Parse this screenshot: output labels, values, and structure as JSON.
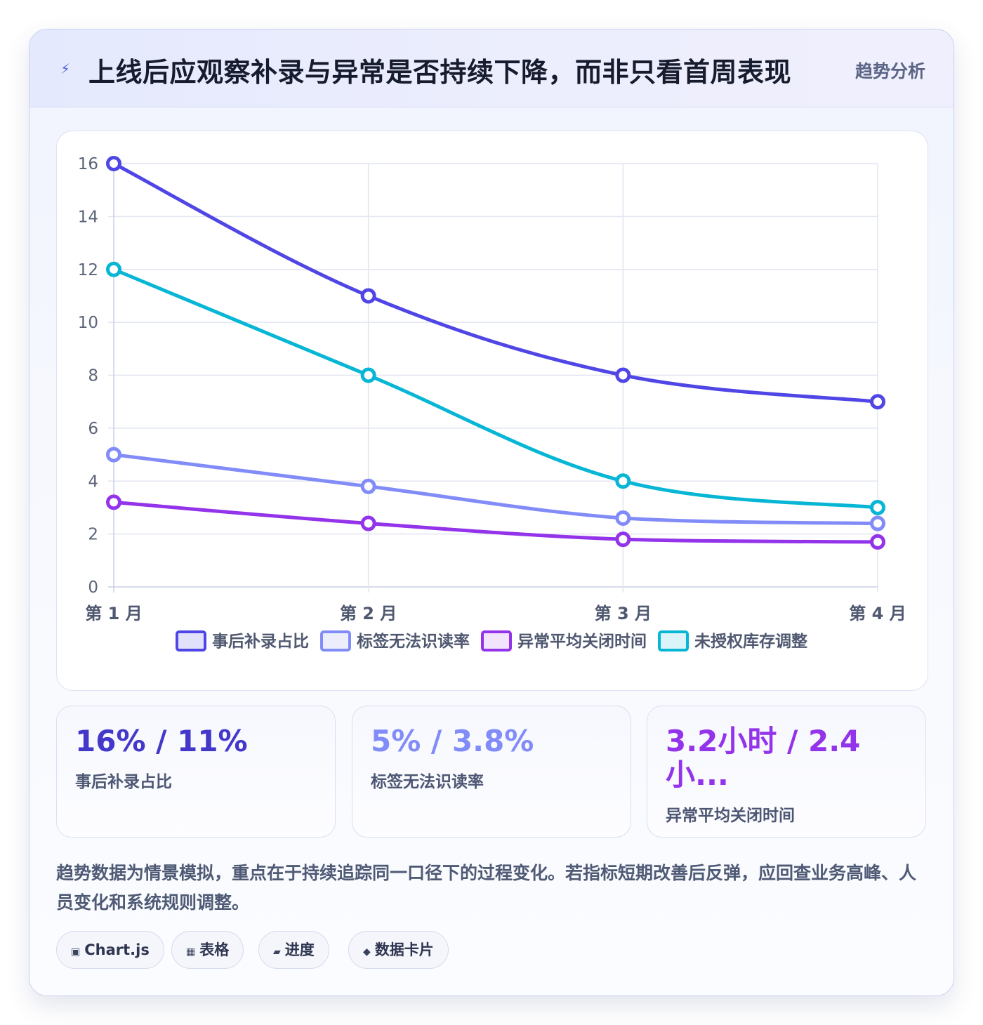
{
  "header": {
    "icon": "lightning-bolt-icon",
    "title": "上线后应观察补录与异常是否持续下降，而非只看首周表现",
    "tag": "趋势分析"
  },
  "chart_data": {
    "type": "line",
    "categories": [
      "第 1 月",
      "第 2 月",
      "第 3 月",
      "第 4 月"
    ],
    "ylim": [
      0,
      16
    ],
    "yticks": [
      "0",
      "2",
      "4",
      "6",
      "8",
      "10",
      "12",
      "14",
      "16"
    ],
    "grid": true,
    "legend_position": "bottom",
    "series": [
      {
        "name": "事后补录占比",
        "values": [
          16,
          11,
          8,
          7
        ],
        "color": "#4f46e5",
        "fill": "#e2e1fb"
      },
      {
        "name": "标签无法识读率",
        "values": [
          5,
          3.8,
          2.6,
          2.4
        ],
        "color": "#818cf8",
        "fill": "#eceefe"
      },
      {
        "name": "异常平均关闭时间",
        "values": [
          3.2,
          2.4,
          1.8,
          1.7
        ],
        "color": "#9333ea",
        "fill": "#f1e4fc"
      },
      {
        "name": "未授权库存调整",
        "values": [
          12,
          8,
          4,
          3
        ],
        "color": "#06b6d4",
        "fill": "#daf4f9"
      }
    ]
  },
  "stats": [
    {
      "value": "16% / 11%",
      "label": "事后补录占比",
      "color": "#4338ca"
    },
    {
      "value": "5% / 3.8%",
      "label": "标签无法识读率",
      "color": "#818cf8"
    },
    {
      "value": "3.2小时 / 2.4 小...",
      "label": "异常平均关闭时间",
      "color": "#9333ea"
    }
  ],
  "description": "趋势数据为情景模拟，重点在于持续追踪同一口径下的过程变化。若指标短期改善后反弹，应回查业务高峰、人员变化和系统规则调整。",
  "chips": [
    {
      "icon": "▣",
      "icon_name": "chart-icon",
      "label": "Chart.js"
    },
    {
      "icon": "▦",
      "icon_name": "table-icon",
      "label": "表格"
    },
    {
      "icon": "▰",
      "icon_name": "progress-icon",
      "label": "进度"
    },
    {
      "icon": "◆",
      "icon_name": "diamond-icon",
      "label": "数据卡片"
    }
  ]
}
